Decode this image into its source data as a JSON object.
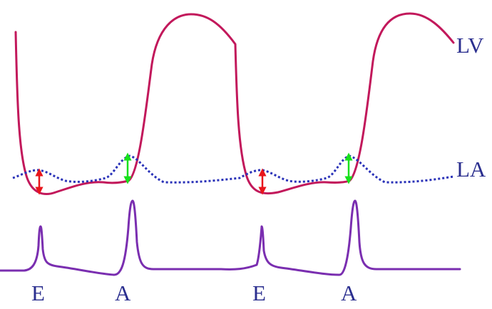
{
  "labels": {
    "lv": "LV",
    "la": "LA",
    "e1": "E",
    "a1": "A",
    "e2": "E",
    "a2": "A"
  },
  "colors": {
    "lv_trace": "#c2185b",
    "la_trace": "#2a32b8",
    "flow_trace": "#7a2eb0",
    "label_text": "#2b2f8f",
    "e_arrow": "#e8151b",
    "a_arrow": "#17e01b"
  }
}
